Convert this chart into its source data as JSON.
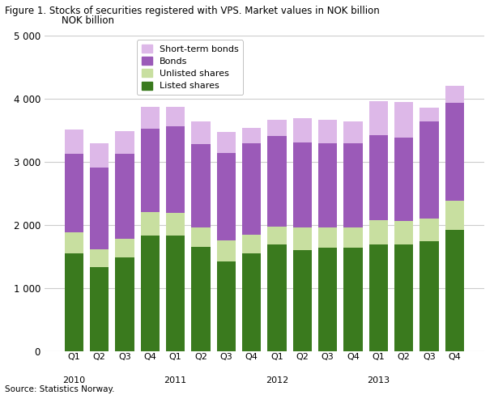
{
  "title": "Figure 1. Stocks of securities registered with VPS. Market values in NOK billion",
  "ylabel": "NOK billion",
  "source": "Source: Statistics Norway.",
  "categories": [
    "Q1",
    "Q2",
    "Q3",
    "Q4",
    "Q1",
    "Q2",
    "Q3",
    "Q4",
    "Q1",
    "Q2",
    "Q3",
    "Q4",
    "Q1",
    "Q2",
    "Q3",
    "Q4"
  ],
  "listed_shares": [
    1560,
    1330,
    1490,
    1840,
    1840,
    1660,
    1420,
    1560,
    1690,
    1600,
    1640,
    1640,
    1700,
    1700,
    1750,
    1930
  ],
  "unlisted_shares": [
    330,
    290,
    300,
    370,
    350,
    310,
    340,
    290,
    290,
    360,
    320,
    330,
    380,
    360,
    360,
    450
  ],
  "bonds": [
    1240,
    1290,
    1340,
    1320,
    1370,
    1310,
    1380,
    1440,
    1430,
    1350,
    1330,
    1330,
    1350,
    1330,
    1530,
    1560
  ],
  "short_term_bonds": [
    380,
    390,
    360,
    340,
    310,
    360,
    330,
    250,
    260,
    380,
    380,
    340,
    530,
    560,
    220,
    270
  ],
  "colors": {
    "listed_shares": "#3a7a1e",
    "unlisted_shares": "#c8dfa0",
    "bonds": "#9b5ab8",
    "short_term_bonds": "#ddb8e8"
  },
  "ylim": [
    0,
    5000
  ],
  "yticks": [
    0,
    1000,
    2000,
    3000,
    4000,
    5000
  ],
  "bar_width": 0.75,
  "background_color": "#ffffff",
  "grid_color": "#cccccc",
  "year_info": [
    [
      "2010",
      0
    ],
    [
      "2011",
      4
    ],
    [
      "2012",
      8
    ],
    [
      "2013",
      12
    ]
  ]
}
